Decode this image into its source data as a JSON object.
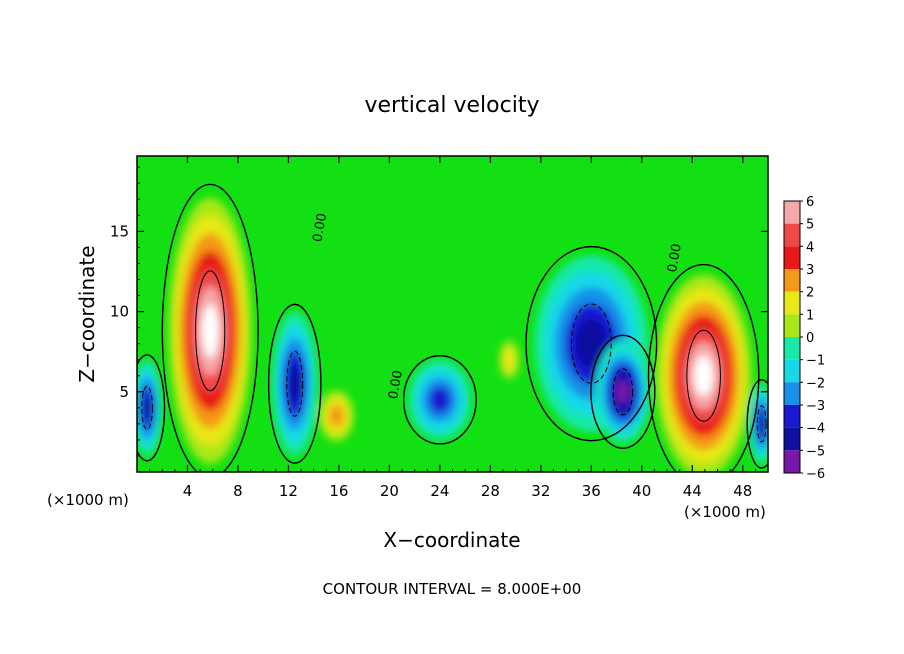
{
  "chart_data": {
    "type": "heatmap",
    "title": "vertical velocity",
    "xlabel": "X−coordinate",
    "ylabel": "Z−coordinate",
    "x_unit_left": "(×1000 m)",
    "x_unit_right": "(×1000 m)",
    "footer": "CONTOUR INTERVAL = 8.000E+00",
    "xlim": [
      0,
      50
    ],
    "ylim": [
      0,
      19.7
    ],
    "x_ticks": [
      4,
      8,
      12,
      16,
      20,
      24,
      28,
      32,
      36,
      40,
      44,
      48
    ],
    "x_tick_labels": [
      "4",
      "8",
      "12",
      "16",
      "20",
      "24",
      "28",
      "32",
      "36",
      "40",
      "44",
      "48"
    ],
    "y_ticks": [
      5,
      10,
      15
    ],
    "y_tick_labels": [
      "5",
      "10",
      "15"
    ],
    "colorbar": {
      "levels": [
        6,
        5,
        4,
        3,
        2,
        1,
        0,
        -1,
        -2,
        -3,
        -4,
        -5,
        -6
      ],
      "labels": [
        "6",
        "5",
        "4",
        "3",
        "2",
        "1",
        "0",
        "−1",
        "−2",
        "−3",
        "−4",
        "−5",
        "−6"
      ],
      "colors": [
        "#f4a8a8",
        "#f04848",
        "#e81818",
        "#f49818",
        "#e8e818",
        "#a8e818",
        "#10e010",
        "#18e8a8",
        "#18d8e8",
        "#1890e8",
        "#1818d0",
        "#1010a0",
        "#7818a8"
      ]
    },
    "contour_labels": [
      {
        "text": "0.00",
        "x": 14.8,
        "y": 15.2,
        "rotate": -80
      },
      {
        "text": "0.00",
        "x": 20.8,
        "y": 5.4,
        "rotate": -80
      },
      {
        "text": "0.00",
        "x": 42.9,
        "y": 13.3,
        "rotate": -80
      }
    ],
    "features": [
      {
        "kind": "updraft",
        "x": 5.8,
        "z": 8.8,
        "rx": 3.3,
        "rz": 8.3,
        "value": 9
      },
      {
        "kind": "updraft",
        "x": 44.9,
        "z": 6.0,
        "rx": 3.8,
        "rz": 6.3,
        "value": 9
      },
      {
        "kind": "downdraft",
        "x": 12.5,
        "z": 5.5,
        "rx": 1.8,
        "rz": 4.5,
        "value": -5
      },
      {
        "kind": "downdraft",
        "x": 36.0,
        "z": 8.0,
        "rx": 4.5,
        "rz": 5.5,
        "value": -5.5
      },
      {
        "kind": "downdraft",
        "x": 38.5,
        "z": 5.0,
        "rx": 2.2,
        "rz": 3.2,
        "value": -6
      },
      {
        "kind": "downdraft",
        "x": 24.0,
        "z": 4.5,
        "rx": 2.5,
        "rz": 2.5,
        "value": -4
      },
      {
        "kind": "downdraft",
        "x": 0.8,
        "z": 4.0,
        "rx": 1.2,
        "rz": 3.0,
        "value": -5
      },
      {
        "kind": "downdraft",
        "x": 49.5,
        "z": 3.0,
        "rx": 1.0,
        "rz": 2.5,
        "value": -5
      },
      {
        "kind": "updraft",
        "x": 15.8,
        "z": 3.5,
        "rx": 1.4,
        "rz": 1.6,
        "value": 3
      },
      {
        "kind": "updraft",
        "x": 29.5,
        "z": 7.0,
        "rx": 0.8,
        "rz": 1.2,
        "value": 2.5
      }
    ]
  }
}
